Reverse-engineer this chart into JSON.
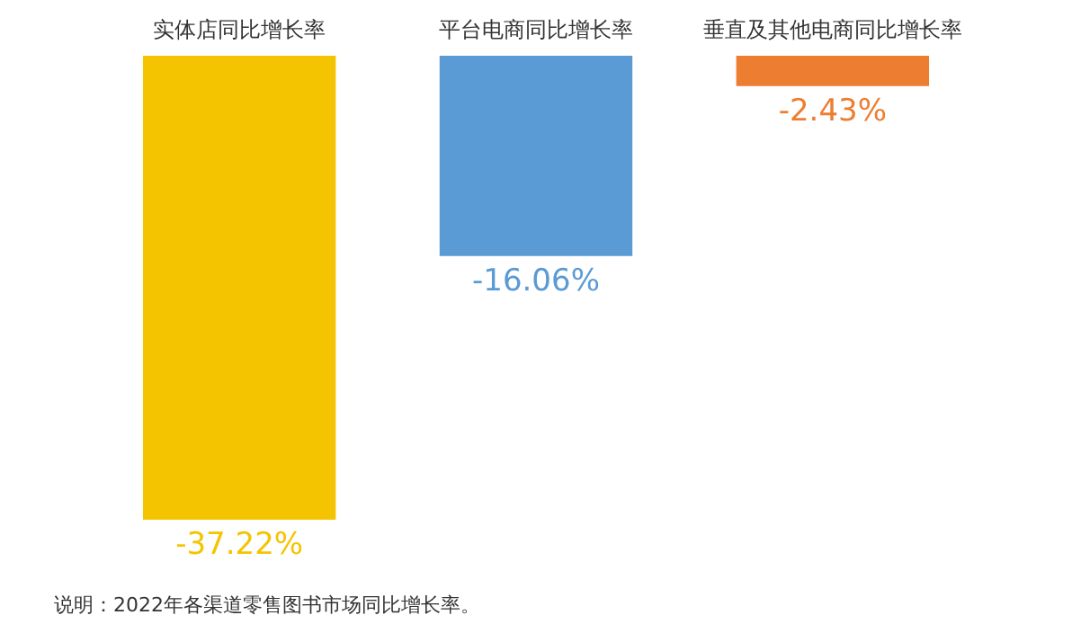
{
  "chart_data": {
    "type": "bar",
    "categories": [
      "实体店同比增长率",
      "平台电商同比增长率",
      "垂直及其他电商同比增长率"
    ],
    "values": [
      -37.22,
      -16.06,
      -2.43
    ],
    "colors": [
      "#f5c400",
      "#5b9bd5",
      "#ed7d31"
    ],
    "value_labels": [
      "-37.22%",
      "-16.06%",
      "-2.43%"
    ],
    "annotations": [
      "说明：2022年各渠道零售图书市场同比增长率。"
    ]
  }
}
